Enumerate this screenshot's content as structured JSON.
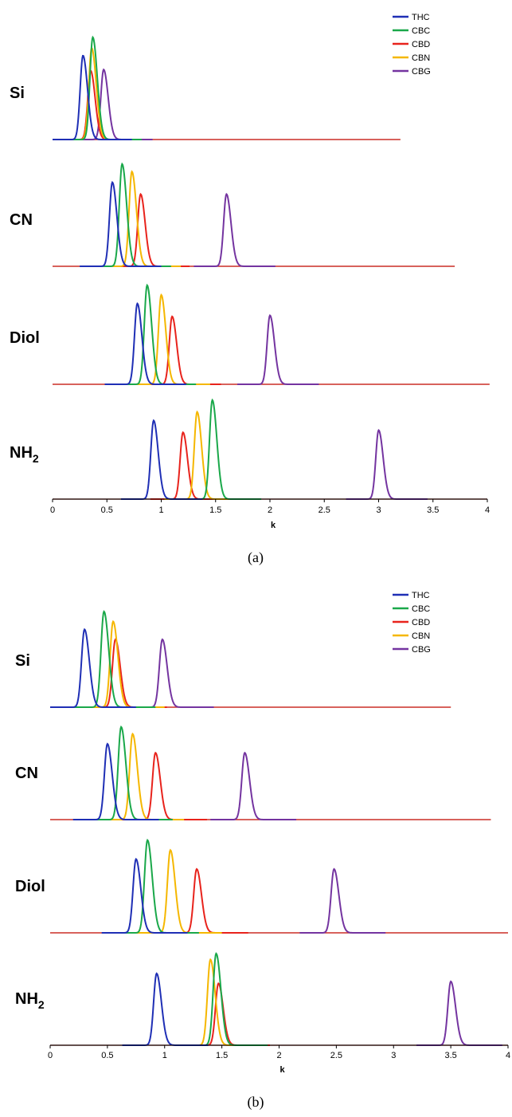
{
  "chart_data": [
    {
      "type": "line",
      "caption": "(a)",
      "xlabel": "k",
      "xlim": [
        0,
        4
      ],
      "x_ticks": [
        "0",
        "0.5",
        "1",
        "1.5",
        "2",
        "2.5",
        "3",
        "3.5",
        "4"
      ],
      "legend": [
        "THC",
        "CBC",
        "CBD",
        "CBN",
        "CBG"
      ],
      "legend_position": "top-right",
      "grid": false,
      "colors": {
        "THC": "#1f2fb5",
        "CBC": "#1aa84a",
        "CBD": "#e8231c",
        "CBN": "#f5b700",
        "CBG": "#7434a0"
      },
      "stationary_phases": [
        {
          "label": "Si",
          "x_end": 3.2,
          "peaks": [
            {
              "name": "THC",
              "k": 0.28,
              "height": 0.78
            },
            {
              "name": "CBC",
              "k": 0.37,
              "height": 0.95
            },
            {
              "name": "CBD",
              "k": 0.35,
              "height": 0.64
            },
            {
              "name": "CBN",
              "k": 0.36,
              "height": 0.85
            },
            {
              "name": "CBG",
              "k": 0.47,
              "height": 0.65
            }
          ]
        },
        {
          "label": "CN",
          "x_end": 3.7,
          "peaks": [
            {
              "name": "THC",
              "k": 0.55,
              "height": 0.78
            },
            {
              "name": "CBC",
              "k": 0.64,
              "height": 0.95
            },
            {
              "name": "CBD",
              "k": 0.81,
              "height": 0.67
            },
            {
              "name": "CBN",
              "k": 0.73,
              "height": 0.88
            },
            {
              "name": "CBG",
              "k": 1.6,
              "height": 0.67
            }
          ]
        },
        {
          "label": "Diol",
          "x_end": 4.02,
          "peaks": [
            {
              "name": "THC",
              "k": 0.78,
              "height": 0.75
            },
            {
              "name": "CBC",
              "k": 0.87,
              "height": 0.92
            },
            {
              "name": "CBD",
              "k": 1.1,
              "height": 0.63
            },
            {
              "name": "CBN",
              "k": 1.0,
              "height": 0.83
            },
            {
              "name": "CBG",
              "k": 2.0,
              "height": 0.64
            }
          ]
        },
        {
          "label": "NH",
          "label_sub": "2",
          "x_end": 4.0,
          "peaks": [
            {
              "name": "THC",
              "k": 0.93,
              "height": 0.73
            },
            {
              "name": "CBC",
              "k": 1.47,
              "height": 0.92
            },
            {
              "name": "CBD",
              "k": 1.2,
              "height": 0.62
            },
            {
              "name": "CBN",
              "k": 1.33,
              "height": 0.81
            },
            {
              "name": "CBG",
              "k": 3.0,
              "height": 0.64
            }
          ]
        }
      ]
    },
    {
      "type": "line",
      "caption": "(b)",
      "xlabel": "k",
      "xlim": [
        0,
        4
      ],
      "x_ticks": [
        "0",
        "0.5",
        "1",
        "1.5",
        "2",
        "2.5",
        "3",
        "3.5",
        "4"
      ],
      "legend": [
        "THC",
        "CBC",
        "CBD",
        "CBN",
        "CBG"
      ],
      "legend_position": "top-right",
      "grid": false,
      "colors": {
        "THC": "#1f2fb5",
        "CBC": "#1aa84a",
        "CBD": "#e8231c",
        "CBN": "#f5b700",
        "CBG": "#7434a0"
      },
      "stationary_phases": [
        {
          "label": "Si",
          "x_end": 3.5,
          "peaks": [
            {
              "name": "THC",
              "k": 0.3,
              "height": 0.78
            },
            {
              "name": "CBC",
              "k": 0.47,
              "height": 0.96
            },
            {
              "name": "CBD",
              "k": 0.57,
              "height": 0.68
            },
            {
              "name": "CBN",
              "k": 0.55,
              "height": 0.86
            },
            {
              "name": "CBG",
              "k": 0.98,
              "height": 0.68
            }
          ]
        },
        {
          "label": "CN",
          "x_end": 3.85,
          "peaks": [
            {
              "name": "THC",
              "k": 0.5,
              "height": 0.76
            },
            {
              "name": "CBC",
              "k": 0.62,
              "height": 0.93
            },
            {
              "name": "CBD",
              "k": 0.92,
              "height": 0.67
            },
            {
              "name": "CBN",
              "k": 0.72,
              "height": 0.86
            },
            {
              "name": "CBG",
              "k": 1.7,
              "height": 0.67
            }
          ]
        },
        {
          "label": "Diol",
          "x_end": 4.0,
          "peaks": [
            {
              "name": "THC",
              "k": 0.75,
              "height": 0.74
            },
            {
              "name": "CBC",
              "k": 0.85,
              "height": 0.93
            },
            {
              "name": "CBD",
              "k": 1.28,
              "height": 0.64
            },
            {
              "name": "CBN",
              "k": 1.05,
              "height": 0.83
            },
            {
              "name": "CBG",
              "k": 2.48,
              "height": 0.64
            }
          ]
        },
        {
          "label": "NH",
          "label_sub": "2",
          "x_end": 4.0,
          "peaks": [
            {
              "name": "THC",
              "k": 0.93,
              "height": 0.72
            },
            {
              "name": "CBC",
              "k": 1.45,
              "height": 0.92
            },
            {
              "name": "CBD",
              "k": 1.47,
              "height": 0.62
            },
            {
              "name": "CBN",
              "k": 1.4,
              "height": 0.86
            },
            {
              "name": "CBG",
              "k": 3.5,
              "height": 0.64
            }
          ]
        }
      ]
    }
  ]
}
